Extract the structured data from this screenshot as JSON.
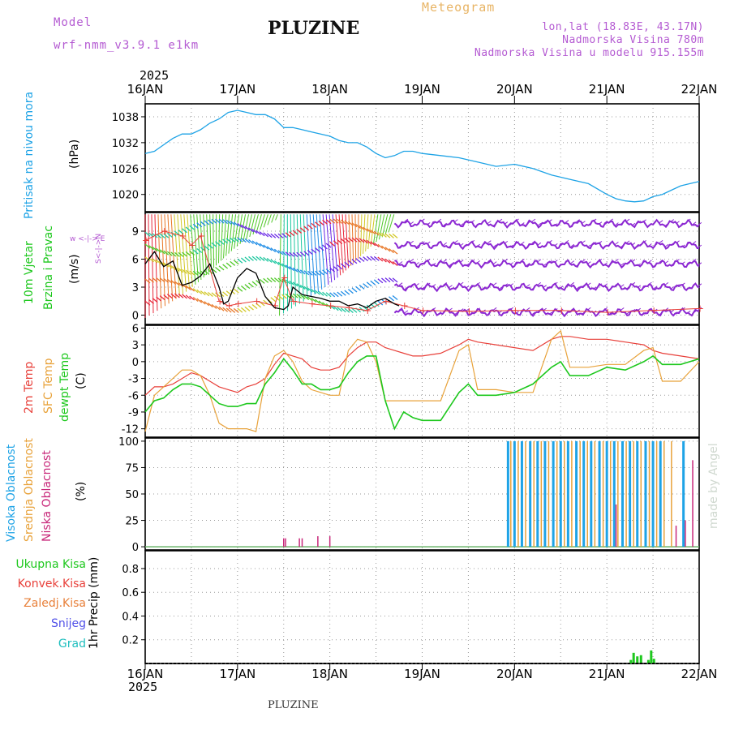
{
  "header": {
    "model_label": "Model",
    "model_value": "wrf-nmm_v3.9.1 e1km",
    "title": "PLUZINE",
    "meteogram_label": "Meteogram",
    "location": "lon,lat (18.83E, 43.17N)",
    "elevation": "Nadmorska Visina 780m",
    "model_elevation": "Nadmorska Visina u modelu 915.155m",
    "year_top": "2025",
    "year_bottom": "2025",
    "footer_title": "PLUZINE",
    "credit": "made by Angel"
  },
  "colors": {
    "pressure": "#1ea3e6",
    "temp2m": "#e8403a",
    "sfc_temp": "#e8a23a",
    "dewpt": "#1ec81e",
    "cloud_high": "#1ea3e6",
    "cloud_mid": "#e8a23a",
    "cloud_low": "#c8287a",
    "precip": "#1ec81e",
    "header_purple": "#b45ad2",
    "header_orange": "#e8b464",
    "wind_speed_line": "#000000",
    "gust": "#e8403a"
  },
  "chart_data": [
    {
      "type": "line",
      "panel": "pressure",
      "ylabel_lines": [
        "Pritisak na nivou mora",
        "(hPa)"
      ],
      "x_tick_labels": [
        "16JAN",
        "17JAN",
        "18JAN",
        "19JAN",
        "20JAN",
        "21JAN",
        "22JAN"
      ],
      "xlim_days": [
        0,
        6
      ],
      "ylim": [
        1016,
        1041
      ],
      "yticks": [
        1020,
        1026,
        1032,
        1038
      ],
      "grid": true,
      "series": [
        {
          "x": [
            0,
            0.1,
            0.2,
            0.3,
            0.4,
            0.5,
            0.6,
            0.7,
            0.8,
            0.9,
            1.0,
            1.1,
            1.2,
            1.3,
            1.4,
            1.5,
            1.6,
            1.7,
            1.8,
            1.9,
            2.0,
            2.1,
            2.2,
            2.3,
            2.4,
            2.5,
            2.6,
            2.7,
            2.8,
            2.9,
            3.0,
            3.2,
            3.4,
            3.6,
            3.8,
            4.0,
            4.2,
            4.4,
            4.6,
            4.8,
            5.0,
            5.1,
            5.2,
            5.3,
            5.4,
            5.5,
            5.6,
            5.7,
            5.8,
            5.9,
            6.0
          ],
          "values": [
            1029.5,
            1030,
            1031.5,
            1033,
            1034,
            1034,
            1035,
            1036.5,
            1037.5,
            1039,
            1039.5,
            1039,
            1038.5,
            1038.5,
            1037.5,
            1035.5,
            1035.5,
            1035,
            1034.5,
            1034,
            1033.5,
            1032.5,
            1032,
            1032,
            1031,
            1029.5,
            1028.5,
            1029,
            1030,
            1030,
            1029.5,
            1029,
            1028.5,
            1027.5,
            1026.5,
            1027,
            1026,
            1024.5,
            1023.5,
            1022.5,
            1020,
            1019,
            1018.5,
            1018.3,
            1018.5,
            1019.5,
            1020,
            1021,
            1022,
            1022.5,
            1023
          ]
        }
      ]
    },
    {
      "type": "line",
      "panel": "wind",
      "ylabel_lines": [
        "10m Vjetar",
        "Brzina i Pravac",
        "(m/s)"
      ],
      "compass_label": "w <-|-> E",
      "compass_ns": "S<-|->N",
      "ylim": [
        -1,
        11
      ],
      "yticks": [
        0,
        3,
        6,
        9
      ],
      "grid": true,
      "series": [
        {
          "name": "speed",
          "x": [
            0,
            0.1,
            0.2,
            0.3,
            0.4,
            0.5,
            0.6,
            0.7,
            0.8,
            0.85,
            0.9,
            1.0,
            1.1,
            1.2,
            1.3,
            1.4,
            1.5,
            1.55,
            1.6,
            1.7,
            1.8,
            1.9,
            2.0,
            2.1,
            2.2,
            2.3,
            2.4,
            2.5,
            2.6,
            2.7,
            2.75
          ],
          "values": [
            5.5,
            6.8,
            5.2,
            5.8,
            3.2,
            3.5,
            4.2,
            5.5,
            3,
            1.2,
            1.5,
            4,
            5,
            4.5,
            2,
            0.8,
            0.6,
            1,
            3,
            2.2,
            2,
            1.8,
            1.5,
            1.5,
            1,
            1.2,
            0.8,
            1.5,
            1.8,
            1.2,
            1
          ]
        },
        {
          "name": "gusts",
          "x": [
            0,
            0.2,
            0.4,
            0.5,
            0.6,
            0.8,
            0.9,
            1.0,
            1.2,
            1.4,
            1.5,
            1.6,
            1.8,
            2.0,
            2.2,
            2.4,
            2.6,
            2.8,
            3.0,
            3.5,
            4.0,
            4.5,
            5.0,
            5.5,
            6.0
          ],
          "values": [
            8,
            9,
            8.5,
            7.5,
            8.5,
            1.5,
            1,
            1.2,
            1.5,
            1,
            4,
            1.5,
            1.2,
            1,
            0.8,
            0.5,
            1.5,
            1,
            0.5,
            0.4,
            0.5,
            0.5,
            0.3,
            0.5,
            0.7
          ]
        }
      ]
    },
    {
      "type": "line",
      "panel": "temperature",
      "ylabel_lines": [
        "2m Temp",
        "SFC Temp",
        "dewpt Temp",
        "(C)"
      ],
      "ylim": [
        -13.5,
        6.5
      ],
      "yticks": [
        -12,
        -9,
        -6,
        -3,
        0,
        3,
        6
      ],
      "grid": true,
      "series": [
        {
          "name": "2m Temp",
          "x": [
            0,
            0.1,
            0.2,
            0.3,
            0.4,
            0.5,
            0.6,
            0.7,
            0.8,
            0.9,
            1.0,
            1.1,
            1.2,
            1.3,
            1.4,
            1.5,
            1.6,
            1.7,
            1.8,
            1.9,
            2.0,
            2.1,
            2.2,
            2.3,
            2.4,
            2.5,
            2.6,
            2.7,
            2.8,
            2.9,
            3.0,
            3.2,
            3.4,
            3.5,
            3.6,
            3.8,
            4.0,
            4.2,
            4.4,
            4.5,
            4.6,
            4.8,
            5.0,
            5.2,
            5.4,
            5.5,
            5.6,
            5.8,
            6.0
          ],
          "values": [
            -6,
            -4.5,
            -4.5,
            -4,
            -3,
            -2,
            -2.5,
            -3.5,
            -4.5,
            -5,
            -5.5,
            -4.5,
            -4,
            -3,
            -0.5,
            1.5,
            1,
            0.5,
            -1,
            -1.5,
            -1.5,
            -1,
            1,
            2.5,
            3.5,
            3.5,
            2.5,
            2,
            1.5,
            1,
            1,
            1.5,
            3,
            4,
            3.5,
            3,
            2.5,
            2,
            4,
            4.5,
            4.5,
            4,
            4,
            3.5,
            3,
            2,
            1.5,
            1,
            0.5
          ]
        },
        {
          "name": "SFC Temp",
          "x": [
            0,
            0.1,
            0.2,
            0.3,
            0.4,
            0.5,
            0.6,
            0.7,
            0.8,
            0.9,
            1.0,
            1.1,
            1.2,
            1.3,
            1.4,
            1.5,
            1.6,
            1.7,
            1.8,
            1.9,
            2.0,
            2.1,
            2.2,
            2.3,
            2.4,
            2.5,
            2.6,
            2.7,
            2.8,
            2.9,
            3.0,
            3.2,
            3.4,
            3.5,
            3.6,
            3.8,
            4.0,
            4.2,
            4.4,
            4.5,
            4.6,
            4.8,
            5.0,
            5.2,
            5.4,
            5.5,
            5.6,
            5.8,
            6.0
          ],
          "values": [
            -12.5,
            -6,
            -4.5,
            -3,
            -1.5,
            -1.5,
            -2.5,
            -6,
            -11,
            -12,
            -12,
            -12,
            -12.5,
            -3,
            1,
            2,
            0,
            -3.5,
            -5,
            -5.5,
            -6,
            -6,
            2,
            4,
            3.5,
            0,
            -7,
            -7,
            -7,
            -7,
            -7,
            -7,
            2,
            3,
            -5,
            -5,
            -5.5,
            -5.5,
            4,
            5.5,
            -1,
            -1,
            -0.5,
            -0.5,
            2,
            2.5,
            -3.5,
            -3.5,
            0
          ]
        },
        {
          "name": "dewpt Temp",
          "x": [
            0,
            0.1,
            0.2,
            0.3,
            0.4,
            0.5,
            0.6,
            0.7,
            0.8,
            0.9,
            1.0,
            1.1,
            1.2,
            1.3,
            1.4,
            1.5,
            1.6,
            1.7,
            1.8,
            1.9,
            2.0,
            2.1,
            2.2,
            2.3,
            2.4,
            2.5,
            2.6,
            2.7,
            2.8,
            2.9,
            3.0,
            3.2,
            3.4,
            3.5,
            3.6,
            3.8,
            4.0,
            4.2,
            4.4,
            4.5,
            4.6,
            4.8,
            5.0,
            5.2,
            5.4,
            5.5,
            5.6,
            5.8,
            6.0
          ],
          "values": [
            -9,
            -7,
            -6.5,
            -5,
            -4,
            -4,
            -4.5,
            -6,
            -7.5,
            -8,
            -8,
            -7.5,
            -7.5,
            -4,
            -2,
            0.5,
            -1.5,
            -4,
            -4,
            -5,
            -5,
            -4.5,
            -2,
            0,
            1,
            1,
            -7,
            -12,
            -9,
            -10,
            -10.5,
            -10.5,
            -5.5,
            -4,
            -6,
            -6,
            -5.5,
            -4,
            -1,
            0,
            -2.5,
            -2.5,
            -1,
            -1.5,
            0,
            1,
            -0.5,
            -0.5,
            0.5
          ]
        }
      ]
    },
    {
      "type": "bar",
      "panel": "clouds",
      "ylabel_lines": [
        "Visoka Oblacnost",
        "Srednja Oblacnost",
        "Niska Oblacnost",
        "(%)"
      ],
      "ylim": [
        -3,
        103
      ],
      "yticks": [
        0,
        25,
        50,
        75,
        100
      ],
      "grid": true,
      "series": [
        {
          "name": "Visoka Oblacnost",
          "x": [
            3.93,
            4.0,
            4.08,
            4.17,
            4.25,
            4.33,
            4.42,
            4.5,
            4.58,
            4.67,
            4.75,
            4.83,
            4.92,
            5.0,
            5.08,
            5.17,
            5.25,
            5.33,
            5.42,
            5.5,
            5.58,
            5.83
          ],
          "values": [
            100,
            100,
            100,
            100,
            100,
            100,
            100,
            100,
            100,
            100,
            100,
            100,
            100,
            100,
            100,
            100,
            100,
            100,
            100,
            100,
            100,
            100
          ]
        },
        {
          "name": "Srednja Oblacnost",
          "x": [
            3.96,
            4.04,
            4.12,
            4.21,
            4.29,
            4.37,
            4.46,
            4.54,
            4.62,
            4.71,
            4.79,
            4.87,
            4.96,
            5.04,
            5.12,
            5.21,
            5.29,
            5.37,
            5.46,
            5.54,
            5.62,
            5.7
          ],
          "values": [
            100,
            100,
            100,
            100,
            100,
            100,
            100,
            100,
            100,
            100,
            100,
            100,
            100,
            100,
            100,
            100,
            100,
            100,
            100,
            100,
            100,
            100
          ]
        },
        {
          "name": "Niska Oblacnost",
          "x": [
            1.5,
            1.52,
            1.67,
            1.7,
            1.87,
            2.0,
            5.1,
            5.75,
            5.85,
            5.93
          ],
          "values": [
            8,
            8,
            8,
            8,
            10,
            10,
            40,
            20,
            25,
            82
          ]
        }
      ]
    },
    {
      "type": "bar",
      "panel": "precip",
      "ylabel_lines": [
        "1hr Precip (mm)"
      ],
      "legend": [
        "Ukupna Kisa",
        "Konvek.Kisa",
        "Zaledj.Kisa",
        "Snijeg",
        "Grad"
      ],
      "legend_colors": [
        "#1ec81e",
        "#e8403a",
        "#e8803a",
        "#5050e8",
        "#1ebebe"
      ],
      "ylim": [
        0,
        0.95
      ],
      "yticks": [
        0.2,
        0.4,
        0.6,
        0.8
      ],
      "grid": true,
      "series": [
        {
          "name": "Ukupna Kisa",
          "x": [
            5.26,
            5.29,
            5.33,
            5.37,
            5.45,
            5.48,
            5.51
          ],
          "values": [
            0.03,
            0.09,
            0.06,
            0.07,
            0.03,
            0.11,
            0.04
          ]
        }
      ]
    }
  ]
}
